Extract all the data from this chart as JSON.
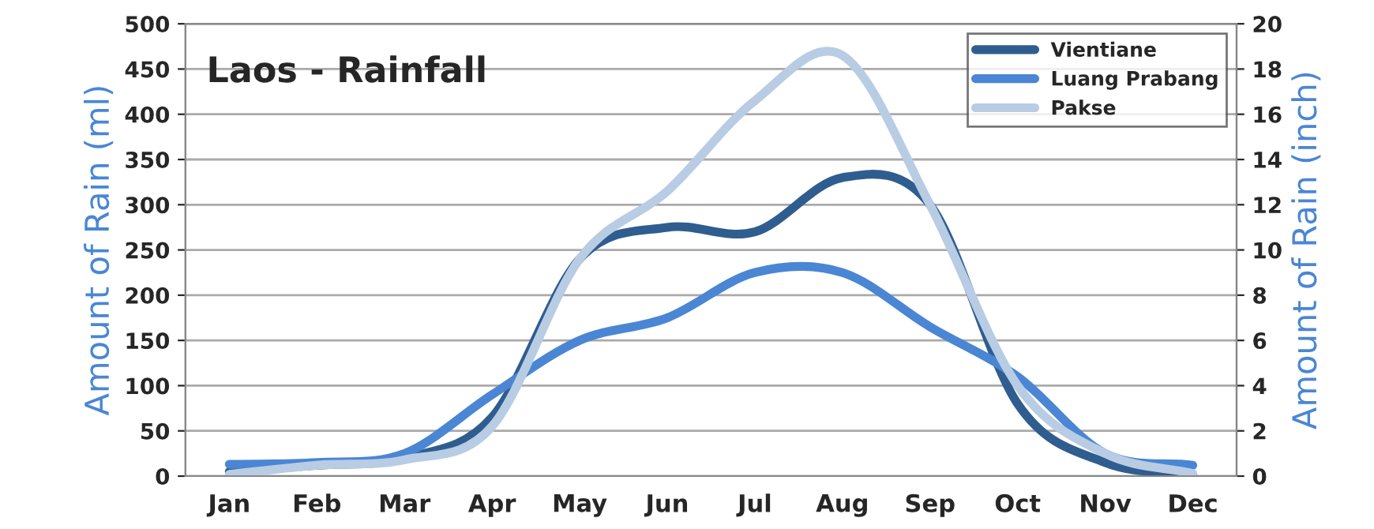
{
  "chart_data": {
    "type": "line",
    "title": "Laos - Rainfall",
    "ylabel": "Amount of Rain (ml)",
    "y2label": "Amount of Rain (inch)",
    "categories": [
      "Jan",
      "Feb",
      "Mar",
      "Apr",
      "May",
      "Jun",
      "Jul",
      "Aug",
      "Sep",
      "Oct",
      "Nov",
      "Dec"
    ],
    "series": [
      {
        "name": "Vientiane",
        "color": "#2f5d8f",
        "values": [
          5,
          12,
          20,
          65,
          240,
          275,
          270,
          330,
          300,
          80,
          15,
          2
        ]
      },
      {
        "name": "Luang Prabang",
        "color": "#4a86d4",
        "values": [
          13,
          15,
          25,
          90,
          150,
          175,
          225,
          225,
          165,
          110,
          25,
          12
        ]
      },
      {
        "name": "Pakse",
        "color": "#b8cce4",
        "values": [
          2,
          12,
          18,
          55,
          240,
          315,
          415,
          465,
          300,
          100,
          25,
          3
        ]
      }
    ],
    "ylim": [
      0,
      500
    ],
    "yticks": [
      0,
      50,
      100,
      150,
      200,
      250,
      300,
      350,
      400,
      450,
      500
    ],
    "y2lim": [
      0,
      20
    ],
    "y2ticks": [
      0,
      2,
      4,
      6,
      8,
      10,
      12,
      14,
      16,
      18,
      20
    ],
    "grid": "y",
    "legend": "top right",
    "marker": "none",
    "line_style": "solid"
  }
}
